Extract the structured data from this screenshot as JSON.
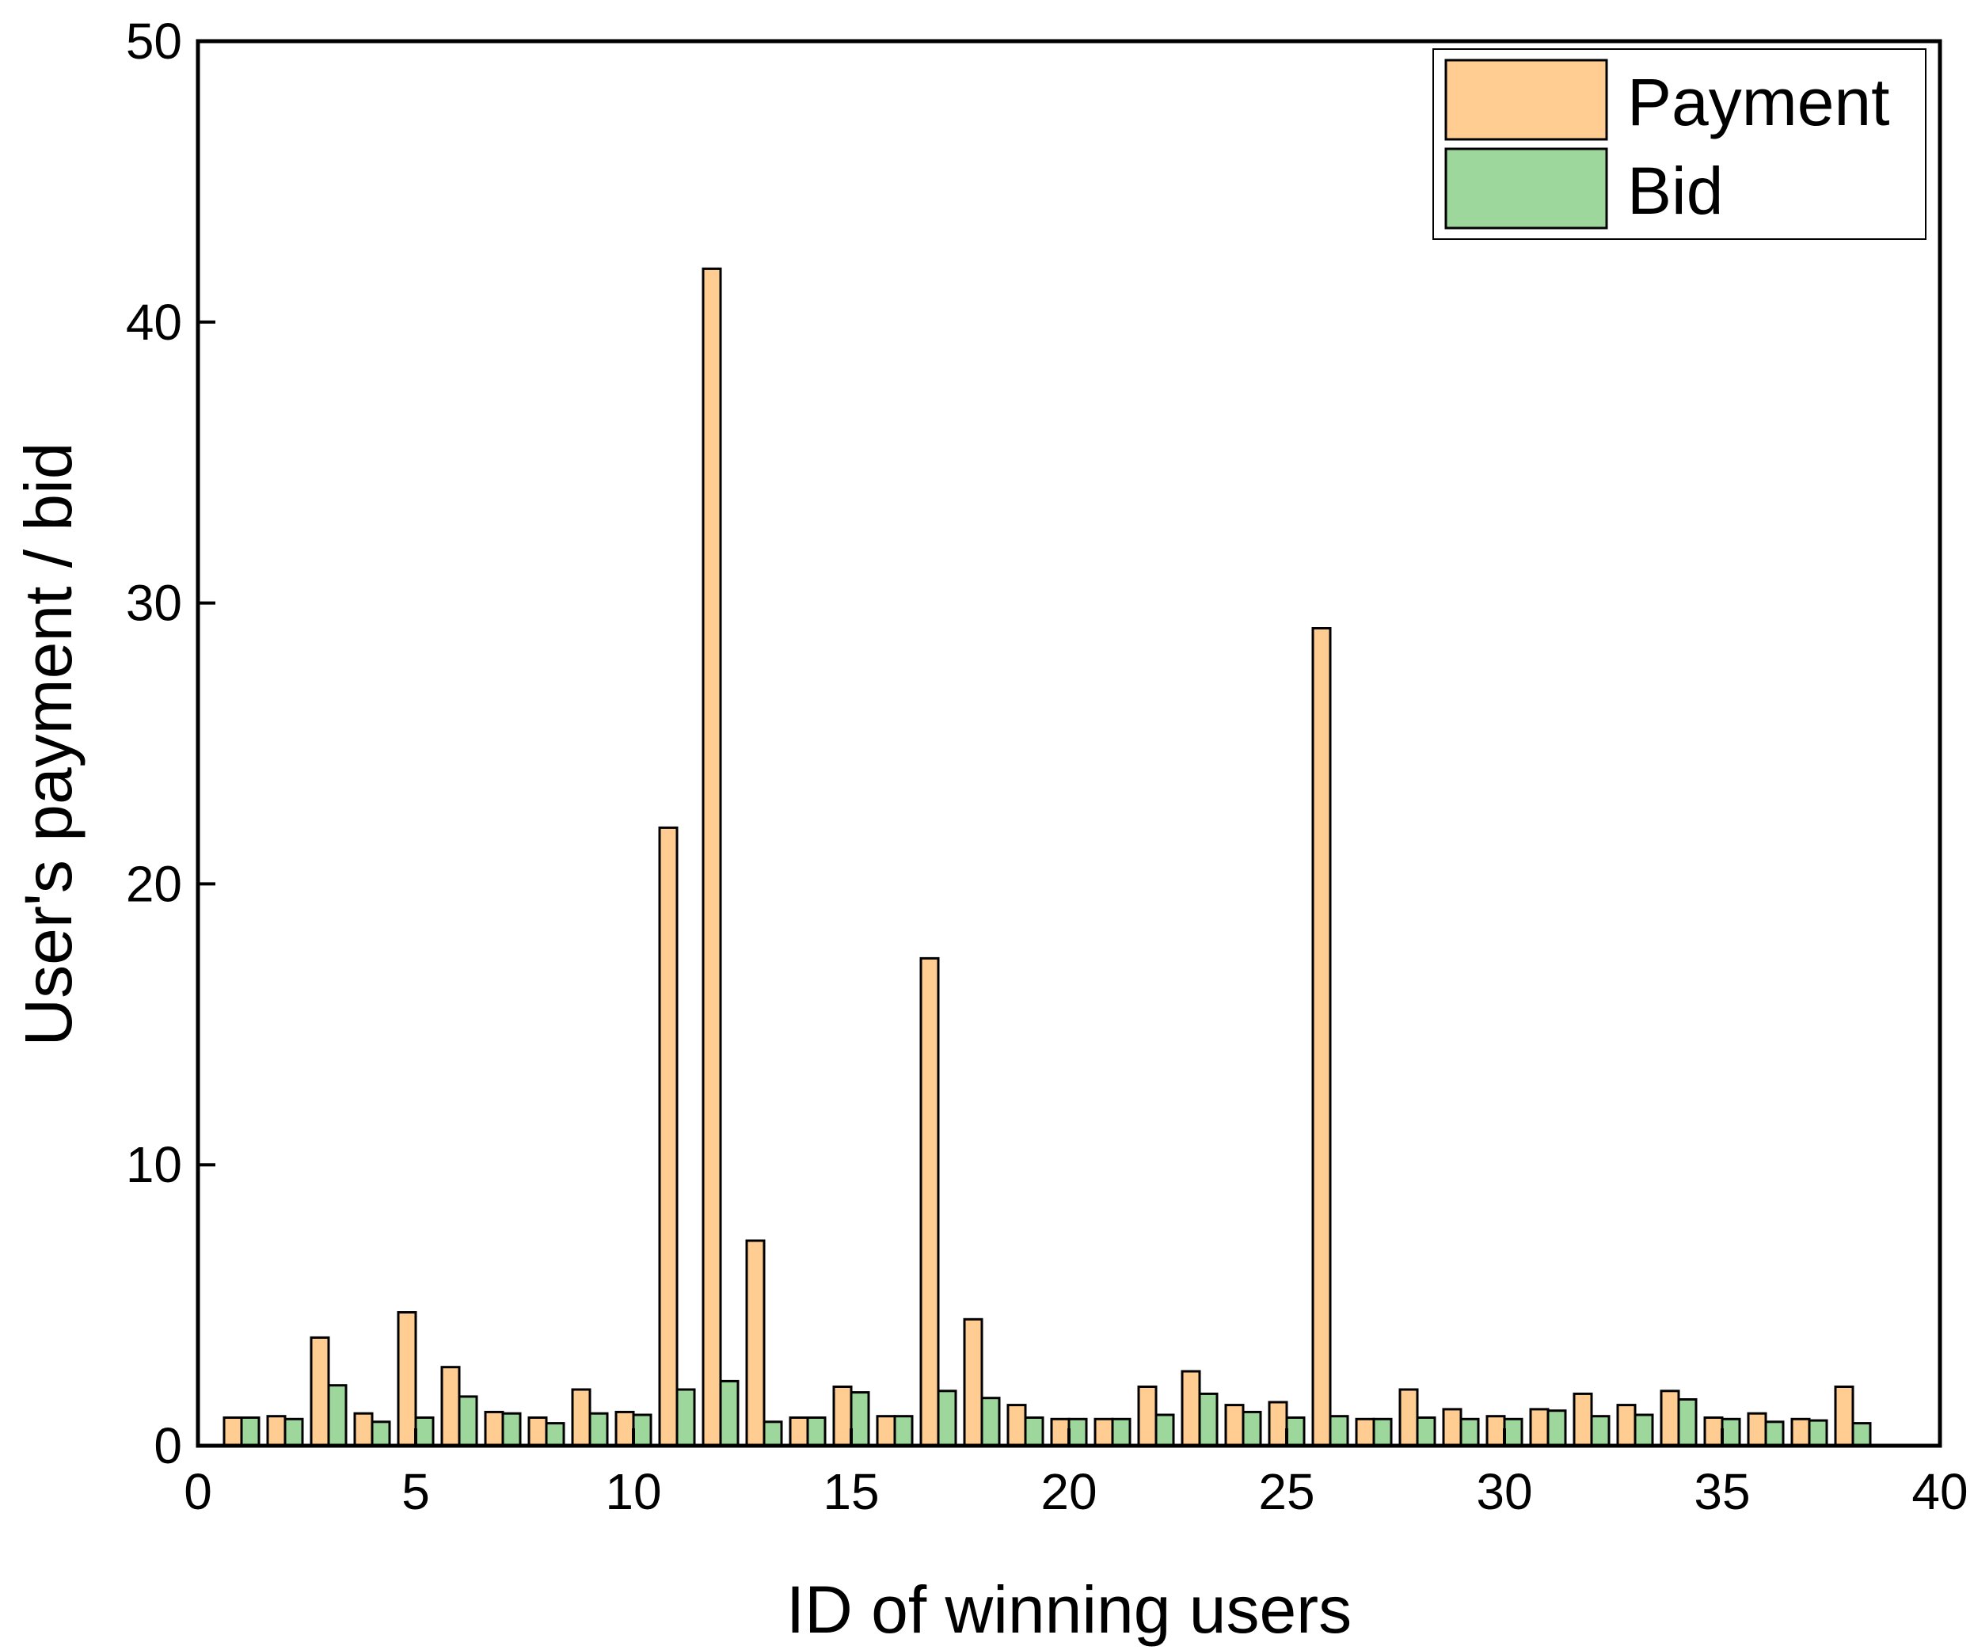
{
  "chart_data": {
    "type": "bar",
    "xlabel": "ID of winning users",
    "ylabel": "User's payment / bid",
    "xlim": [
      0,
      40
    ],
    "ylim": [
      0,
      50
    ],
    "xticks": [
      0,
      5,
      10,
      15,
      20,
      25,
      30,
      35,
      40
    ],
    "yticks": [
      0,
      10,
      20,
      30,
      40,
      50
    ],
    "grid": false,
    "legend_position": "top-right",
    "x": [
      1,
      2,
      3,
      4,
      5,
      6,
      7,
      8,
      9,
      10,
      11,
      12,
      13,
      14,
      15,
      16,
      17,
      18,
      19,
      20,
      21,
      22,
      23,
      24,
      25,
      26,
      27,
      28,
      29,
      30,
      31,
      32,
      33,
      34,
      35,
      36,
      37,
      38
    ],
    "series": [
      {
        "name": "Payment",
        "color": "#FFCC92",
        "values": [
          1.0,
          1.05,
          3.85,
          1.15,
          4.75,
          2.8,
          1.2,
          1.0,
          2.0,
          1.2,
          22.0,
          41.9,
          7.3,
          1.0,
          2.1,
          1.05,
          17.35,
          4.5,
          1.45,
          0.95,
          0.95,
          2.1,
          2.65,
          1.45,
          1.55,
          29.1,
          0.95,
          2.0,
          1.3,
          1.05,
          1.3,
          1.85,
          1.45,
          1.95,
          1.0,
          1.15,
          0.95,
          2.1
        ]
      },
      {
        "name": "Bid",
        "color": "#9DD79C",
        "values": [
          1.0,
          0.95,
          2.15,
          0.85,
          1.0,
          1.75,
          1.15,
          0.8,
          1.15,
          1.1,
          2.0,
          2.3,
          0.85,
          1.0,
          1.9,
          1.05,
          1.95,
          1.7,
          1.0,
          0.95,
          0.95,
          1.1,
          1.85,
          1.2,
          1.0,
          1.05,
          0.95,
          1.0,
          0.95,
          0.95,
          1.25,
          1.05,
          1.1,
          1.65,
          0.95,
          0.85,
          0.9,
          0.8
        ]
      }
    ]
  }
}
